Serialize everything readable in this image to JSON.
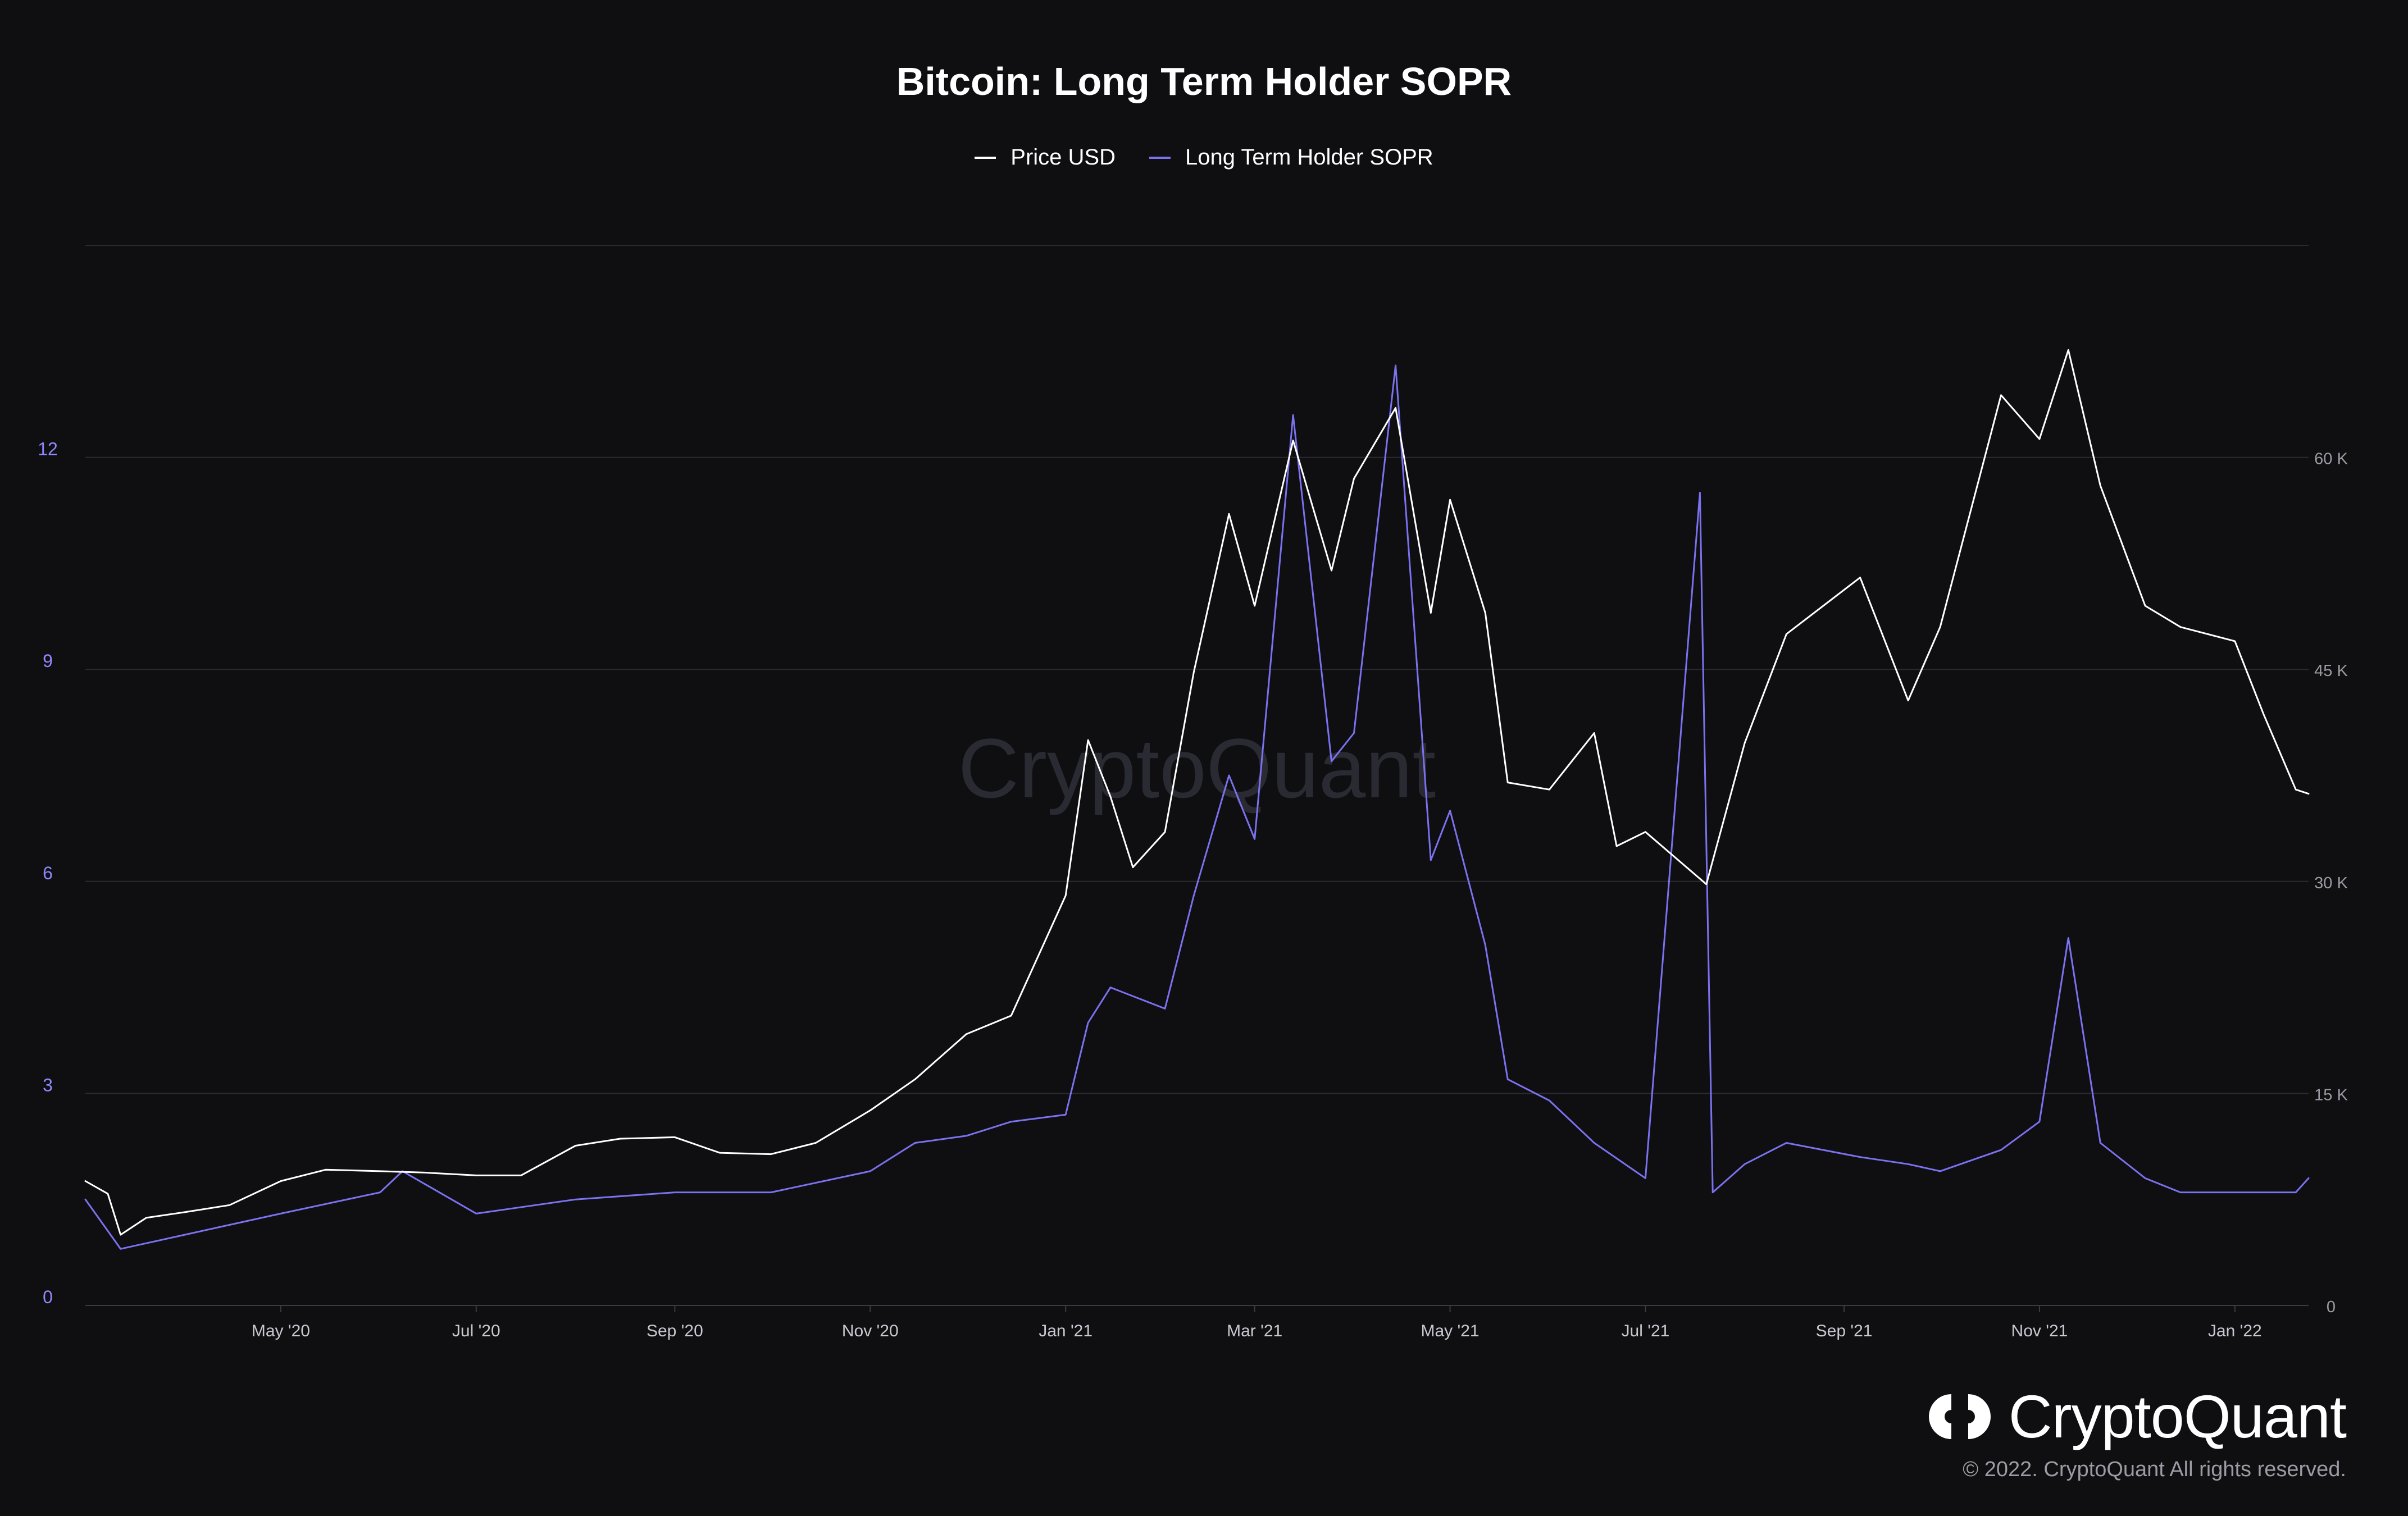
{
  "chart_data": {
    "type": "line",
    "title": "Bitcoin: Long Term Holder SOPR",
    "watermark": "CryptoQuant",
    "x_tick_labels": [
      "May '20",
      "Jul '20",
      "Sep '20",
      "Nov '20",
      "Jan '21",
      "Mar '21",
      "May '21",
      "Jul '21",
      "Sep '21",
      "Nov '21",
      "Jan '22"
    ],
    "x_range": [
      "2020-03-01",
      "2022-01-24"
    ],
    "left_axis": {
      "series": "Long Term Holder SOPR",
      "ticks": [
        "0",
        "3",
        "6",
        "9",
        "12"
      ],
      "range": [
        0,
        15
      ]
    },
    "right_axis": {
      "series": "Price USD",
      "ticks": [
        "0",
        "15 K",
        "30 K",
        "45 K",
        "60 K"
      ],
      "range": [
        0,
        75000
      ]
    },
    "series": [
      {
        "name": "Price USD",
        "axis": "right",
        "color": "#ffffff",
        "dates": [
          "2020-03-01",
          "2020-03-08",
          "2020-03-12",
          "2020-03-20",
          "2020-04-01",
          "2020-04-15",
          "2020-05-01",
          "2020-05-15",
          "2020-06-01",
          "2020-06-15",
          "2020-07-01",
          "2020-07-15",
          "2020-08-01",
          "2020-08-15",
          "2020-09-01",
          "2020-09-15",
          "2020-10-01",
          "2020-10-15",
          "2020-11-01",
          "2020-11-15",
          "2020-12-01",
          "2020-12-15",
          "2021-01-01",
          "2021-01-08",
          "2021-01-15",
          "2021-01-22",
          "2021-02-01",
          "2021-02-10",
          "2021-02-21",
          "2021-03-01",
          "2021-03-13",
          "2021-03-25",
          "2021-04-01",
          "2021-04-14",
          "2021-04-25",
          "2021-05-01",
          "2021-05-12",
          "2021-05-19",
          "2021-06-01",
          "2021-06-15",
          "2021-06-22",
          "2021-07-01",
          "2021-07-20",
          "2021-08-01",
          "2021-08-14",
          "2021-09-06",
          "2021-09-21",
          "2021-10-01",
          "2021-10-20",
          "2021-11-01",
          "2021-11-10",
          "2021-11-20",
          "2021-12-04",
          "2021-12-15",
          "2022-01-01",
          "2022-01-10",
          "2022-01-20",
          "2022-01-24"
        ],
        "values": [
          8800,
          7900,
          5000,
          6200,
          6600,
          7100,
          8800,
          9600,
          9500,
          9400,
          9200,
          9200,
          11300,
          11800,
          11900,
          10800,
          10700,
          11500,
          13800,
          16000,
          19200,
          20500,
          29000,
          40000,
          36000,
          31000,
          33500,
          44800,
          56000,
          49500,
          61200,
          52000,
          58500,
          63500,
          49000,
          57000,
          49000,
          37000,
          36500,
          40500,
          32500,
          33500,
          29800,
          39800,
          47500,
          51500,
          42800,
          48000,
          64400,
          61300,
          67600,
          58000,
          49500,
          48000,
          47000,
          41800,
          36500,
          36200
        ]
      },
      {
        "name": "Long Term Holder SOPR",
        "axis": "left",
        "color": "#7b72f0",
        "dates": [
          "2020-03-01",
          "2020-03-12",
          "2020-04-01",
          "2020-05-01",
          "2020-06-01",
          "2020-06-08",
          "2020-07-01",
          "2020-08-01",
          "2020-09-01",
          "2020-10-01",
          "2020-11-01",
          "2020-11-15",
          "2020-12-01",
          "2020-12-15",
          "2021-01-01",
          "2021-01-08",
          "2021-01-15",
          "2021-02-01",
          "2021-02-10",
          "2021-02-21",
          "2021-03-01",
          "2021-03-13",
          "2021-03-25",
          "2021-04-01",
          "2021-04-14",
          "2021-04-25",
          "2021-05-01",
          "2021-05-12",
          "2021-05-19",
          "2021-06-01",
          "2021-06-15",
          "2021-07-01",
          "2021-07-18",
          "2021-07-22",
          "2021-08-01",
          "2021-08-14",
          "2021-09-06",
          "2021-09-21",
          "2021-10-01",
          "2021-10-20",
          "2021-11-01",
          "2021-11-10",
          "2021-11-20",
          "2021-12-04",
          "2021-12-15",
          "2022-01-01",
          "2022-01-10",
          "2022-01-20",
          "2022-01-24"
        ],
        "values": [
          1.5,
          0.8,
          1.0,
          1.3,
          1.6,
          1.9,
          1.3,
          1.5,
          1.6,
          1.6,
          1.9,
          2.3,
          2.4,
          2.6,
          2.7,
          4.0,
          4.5,
          4.2,
          5.8,
          7.5,
          6.6,
          12.6,
          7.7,
          8.1,
          13.3,
          6.3,
          7.0,
          5.1,
          3.2,
          2.9,
          2.3,
          1.8,
          11.5,
          1.6,
          2.0,
          2.3,
          2.1,
          2.0,
          1.9,
          2.2,
          2.6,
          5.2,
          2.3,
          1.8,
          1.6,
          1.6,
          1.6,
          1.6,
          1.8
        ]
      }
    ]
  },
  "legend": {
    "price_label": "Price USD",
    "sopr_label": "Long Term Holder SOPR"
  },
  "brand": {
    "name": "CryptoQuant",
    "copyright": "© 2022. CryptoQuant All rights reserved."
  },
  "colors": {
    "background": "#0f0f12",
    "grid": "#2a2a31",
    "price": "#ffffff",
    "sopr": "#7b72f0",
    "left_tick": "#8f88ff",
    "right_tick": "#9b9ba3"
  }
}
